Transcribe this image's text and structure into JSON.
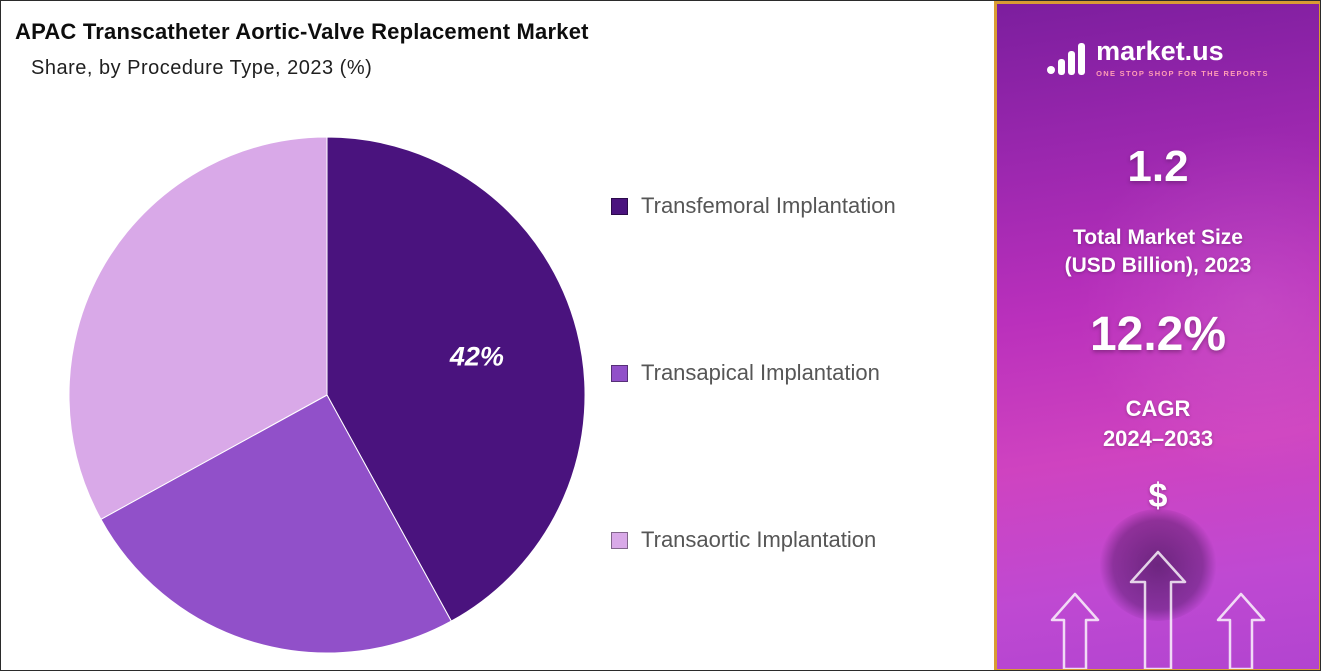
{
  "header": {
    "title": "APAC Transcatheter Aortic-Valve Replacement Market",
    "subtitle": "Share, by Procedure Type, 2023 (%)"
  },
  "chart_data": {
    "type": "pie",
    "title": "APAC Transcatheter Aortic-Valve Replacement Market Share, by Procedure Type, 2023 (%)",
    "labels": [
      "Transfemoral Implantation",
      "Transapical Implantation",
      "Transaortic Implantation"
    ],
    "values": [
      42,
      25,
      33
    ],
    "colors": [
      "#4a137e",
      "#9150c9",
      "#d9a9e8"
    ],
    "data_labels": [
      "42%",
      "",
      ""
    ],
    "start_angle_deg": -90,
    "legend_position": "right"
  },
  "sidebar": {
    "logo_name": "market.us",
    "logo_tagline": "ONE STOP SHOP FOR THE REPORTS",
    "market_size_value": "1.2",
    "market_size_label_line1": "Total Market Size",
    "market_size_label_line2": "(USD Billion), 2023",
    "cagr_value": "12.2%",
    "cagr_label_line1": "CAGR",
    "cagr_label_line2": "2024–2033",
    "dollar_symbol": "$",
    "border_color": "#d99c33"
  }
}
